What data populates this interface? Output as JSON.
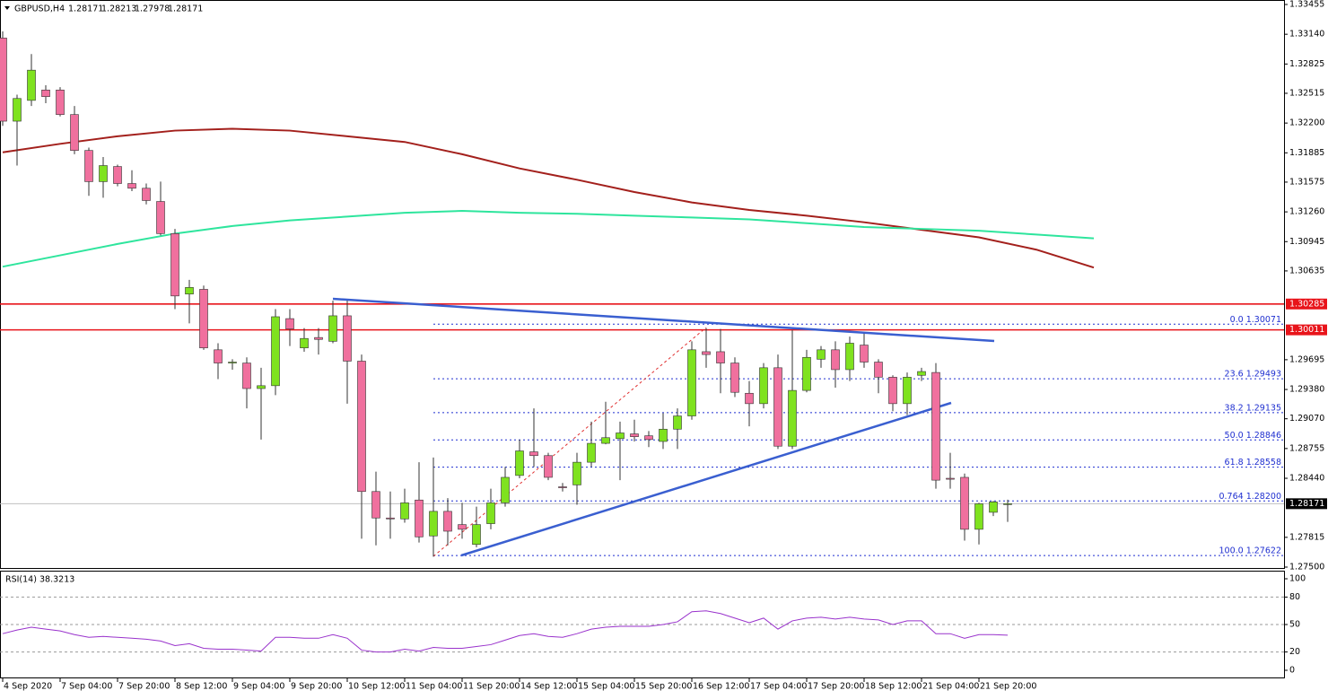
{
  "chart_data": {
    "type": "candlestick",
    "symbol": "GBPUSD,H4",
    "time_labels": [
      "4 Sep 2020",
      "7 Sep 04:00",
      "7 Sep 20:00",
      "8 Sep 12:00",
      "9 Sep 04:00",
      "9 Sep 20:00",
      "10 Sep 12:00",
      "11 Sep 04:00",
      "11 Sep 20:00",
      "14 Sep 12:00",
      "15 Sep 04:00",
      "15 Sep 20:00",
      "16 Sep 12:00",
      "17 Sep 04:00",
      "17 Sep 20:00",
      "18 Sep 12:00",
      "21 Sep 04:00",
      "21 Sep 20:00"
    ],
    "candles": {
      "open": [
        1.331,
        1.3222,
        1.3244,
        1.3255,
        1.3255,
        1.3229,
        1.3191,
        1.3158,
        1.3174,
        1.3156,
        1.3151,
        1.3137,
        1.3103,
        1.3039,
        1.3044,
        1.298,
        1.2966,
        1.2966,
        1.2939,
        1.2942,
        1.3013,
        1.2982,
        1.2993,
        1.2989,
        1.3016,
        1.2968,
        1.283,
        1.2802,
        1.2801,
        1.2821,
        1.2783,
        1.2809,
        1.2795,
        1.2774,
        1.2796,
        1.2818,
        1.2847,
        1.2872,
        1.2868,
        1.2835,
        1.2837,
        1.2861,
        1.2881,
        1.2886,
        1.2891,
        1.2889,
        1.2883,
        1.2896,
        1.291,
        1.2978,
        1.2978,
        1.2966,
        1.2934,
        1.2923,
        1.2961,
        1.2878,
        1.2937,
        1.297,
        1.298,
        1.2959,
        1.2985,
        1.2967,
        1.2951,
        1.2923,
        1.2953,
        1.2956,
        1.2844,
        1.2845,
        1.279,
        1.2808,
        1.28171
      ],
      "high": [
        1.3317,
        1.325,
        1.3293,
        1.326,
        1.3258,
        1.3238,
        1.3194,
        1.3184,
        1.3176,
        1.317,
        1.3156,
        1.3158,
        1.3108,
        1.3054,
        1.3048,
        1.2987,
        1.297,
        1.2972,
        1.2961,
        1.3023,
        1.3023,
        1.3003,
        1.3003,
        1.3032,
        1.3032,
        1.2975,
        1.2851,
        1.283,
        1.2833,
        1.2861,
        1.2866,
        1.2823,
        1.2818,
        1.2814,
        1.2833,
        1.2856,
        1.2885,
        1.2918,
        1.2871,
        1.2839,
        1.2871,
        1.2904,
        1.2925,
        1.2904,
        1.2906,
        1.2894,
        1.2913,
        1.2918,
        1.2989,
        1.3003,
        1.3002,
        1.2972,
        1.2947,
        1.2966,
        1.2975,
        1.3001,
        1.298,
        1.2984,
        1.2989,
        1.2994,
        1.2997,
        1.297,
        1.2953,
        1.2956,
        1.2961,
        1.2966,
        1.2871,
        1.2849,
        1.2818,
        1.282,
        1.28213
      ],
      "low": [
        1.3217,
        1.3175,
        1.3238,
        1.3241,
        1.3227,
        1.3187,
        1.3143,
        1.3141,
        1.3153,
        1.3148,
        1.3134,
        1.3101,
        1.3023,
        1.3008,
        1.298,
        1.2949,
        1.2959,
        1.2918,
        1.2885,
        1.2932,
        1.2984,
        1.2978,
        1.2975,
        1.2987,
        1.2923,
        1.278,
        1.2773,
        1.278,
        1.2797,
        1.2776,
        1.2761,
        1.2773,
        1.278,
        1.2771,
        1.279,
        1.2814,
        1.2844,
        1.2856,
        1.2842,
        1.283,
        1.2816,
        1.2856,
        1.288,
        1.2842,
        1.2883,
        1.2877,
        1.2875,
        1.2875,
        1.2906,
        1.2961,
        1.2934,
        1.293,
        1.2899,
        1.2918,
        1.2875,
        1.2875,
        1.2935,
        1.2961,
        1.294,
        1.2947,
        1.2961,
        1.2934,
        1.2915,
        1.2911,
        1.2947,
        1.2833,
        1.2833,
        1.2778,
        1.2774,
        1.2804,
        1.27978
      ],
      "close": [
        1.3222,
        1.3246,
        1.3276,
        1.3248,
        1.3229,
        1.3191,
        1.3158,
        1.3175,
        1.3156,
        1.3151,
        1.3138,
        1.3103,
        1.3037,
        1.3046,
        1.2982,
        1.2966,
        1.2967,
        1.2939,
        1.2942,
        1.3015,
        1.3002,
        1.2992,
        1.2991,
        1.3016,
        1.2968,
        1.283,
        1.2802,
        1.2801,
        1.2818,
        1.2782,
        1.2809,
        1.2788,
        1.279,
        1.2795,
        1.2818,
        1.2845,
        1.2873,
        1.2868,
        1.2845,
        1.2834,
        1.2861,
        1.2881,
        1.2887,
        1.2892,
        1.2888,
        1.2885,
        1.2896,
        1.291,
        1.298,
        1.2975,
        1.2966,
        1.2935,
        1.2923,
        1.2961,
        1.2878,
        1.2937,
        1.2972,
        1.298,
        1.2959,
        1.2987,
        1.2967,
        1.2951,
        1.2923,
        1.2951,
        1.2957,
        1.2842,
        1.2843,
        1.279,
        1.2817,
        1.2819,
        1.28171
      ]
    },
    "up_color": "#7fe21f",
    "down_color": "#f0709e",
    "ylim": [
      1.275,
      1.33455
    ],
    "yticks": [
      {
        "value": 1.33455,
        "label": "1.33455"
      },
      {
        "value": 1.3314,
        "label": "1.33140"
      },
      {
        "value": 1.32825,
        "label": "1.32825"
      },
      {
        "value": 1.32515,
        "label": "1.32515"
      },
      {
        "value": 1.322,
        "label": "1.32200"
      },
      {
        "value": 1.31885,
        "label": "1.31885"
      },
      {
        "value": 1.31575,
        "label": "1.31575"
      },
      {
        "value": 1.3126,
        "label": "1.31260"
      },
      {
        "value": 1.30945,
        "label": "1.30945"
      },
      {
        "value": 1.30635,
        "label": "1.30635"
      },
      {
        "value": 1.29695,
        "label": "1.29695"
      },
      {
        "value": 1.2938,
        "label": "1.29380"
      },
      {
        "value": 1.2907,
        "label": "1.29070"
      },
      {
        "value": 1.28755,
        "label": "1.28755"
      },
      {
        "value": 1.2844,
        "label": "1.28440"
      },
      {
        "value": 1.27815,
        "label": "1.27815"
      },
      {
        "value": 1.275,
        "label": "1.27500"
      }
    ],
    "series": [
      {
        "color": "#a3201c",
        "values": [
          1.3189,
          1.3198,
          1.3206,
          1.3212,
          1.3214,
          1.3212,
          1.3206,
          1.32,
          1.3187,
          1.3172,
          1.316,
          1.3147,
          1.3136,
          1.3128,
          1.3122,
          1.3115,
          1.3107,
          1.3099,
          1.3086,
          1.3067
        ]
      },
      {
        "color": "#2ee59d",
        "values": [
          1.3068,
          1.308,
          1.3092,
          1.3103,
          1.3111,
          1.3117,
          1.3121,
          1.3125,
          1.3127,
          1.3125,
          1.3124,
          1.3122,
          1.312,
          1.3118,
          1.3114,
          1.311,
          1.3108,
          1.3106,
          1.3102,
          1.3098
        ]
      }
    ],
    "hlines": {
      "color": "#e8141a",
      "values": [
        1.30285,
        1.30011
      ]
    },
    "fib": {
      "color": "#1f2fd0",
      "levels": [
        {
          "value": 1.30071,
          "label": "0.0 1.30071"
        },
        {
          "value": 1.29493,
          "label": "23.6 1.29493"
        },
        {
          "value": 1.29135,
          "label": "38.2 1.29135"
        },
        {
          "value": 1.28846,
          "label": "50.0 1.28846"
        },
        {
          "value": 1.28558,
          "label": "61.8 1.28558"
        },
        {
          "value": 1.282,
          "label": "0.764 1.28200"
        },
        {
          "value": 1.27622,
          "label": "100.0 1.27622"
        }
      ]
    },
    "rsi": {
      "name": "RSI(14)",
      "color": "#9932cc",
      "values": [
        40,
        44,
        47,
        45,
        43,
        39,
        36,
        37,
        36,
        35,
        34,
        32,
        27,
        29,
        24,
        23,
        23,
        22,
        21,
        36,
        36,
        35,
        35,
        39,
        35,
        22,
        20,
        20,
        23,
        21,
        25,
        24,
        24,
        26,
        28,
        33,
        38,
        40,
        37,
        36,
        40,
        45,
        47,
        48,
        48,
        48,
        50,
        53,
        64,
        65,
        62,
        57,
        52,
        57,
        45,
        54,
        57,
        58,
        56,
        58,
        56,
        55,
        50,
        54,
        54,
        40,
        40,
        35,
        39,
        39,
        38.3213
      ],
      "ylim": [
        0,
        100
      ],
      "yticks": [
        100,
        80,
        50,
        20,
        0
      ]
    }
  }
}
